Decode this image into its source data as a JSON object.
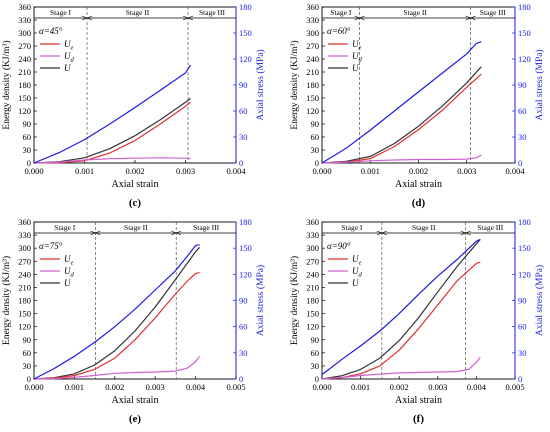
{
  "chart_data": [
    {
      "type": "line",
      "panel_label": "(c)",
      "alpha_text": "α=45°",
      "xlabel": "Axial strain",
      "ylabel": "Energy density (KJ/m³)",
      "y2label": "Axial stress (MPa)",
      "xlim": [
        0,
        0.004
      ],
      "ylim": [
        0,
        360
      ],
      "y2lim": [
        0,
        180
      ],
      "xticks": [
        0.0,
        0.001,
        0.002,
        0.003,
        0.004
      ],
      "xtick_labels": [
        "0.000",
        "0.001",
        "0.002",
        "0.003",
        "0.004"
      ],
      "yticks": [
        0,
        30,
        60,
        90,
        120,
        150,
        180,
        210,
        240,
        270,
        300,
        330,
        360
      ],
      "y2ticks": [
        0,
        30,
        60,
        90,
        120,
        150,
        180
      ],
      "stages": {
        "labels": [
          "Stage I",
          "Stage II",
          "Stage III"
        ],
        "boundaries": [
          0.00105,
          0.00305
        ]
      },
      "legend": [
        {
          "key": "Ue",
          "main": "U",
          "sub": "e",
          "color": "#e03030"
        },
        {
          "key": "Ud",
          "main": "U",
          "sub": "d",
          "color": "#d060d0"
        },
        {
          "key": "U",
          "main": "U",
          "sub": "",
          "color": "#333333"
        }
      ],
      "series": [
        {
          "name": "U",
          "axis": "left",
          "color": "#333333",
          "x": [
            0,
            0.0005,
            0.001,
            0.0015,
            0.002,
            0.0025,
            0.003,
            0.0031
          ],
          "y": [
            0,
            3,
            12,
            33,
            63,
            100,
            140,
            149
          ]
        },
        {
          "name": "Ue",
          "axis": "left",
          "color": "#e03030",
          "x": [
            0,
            0.0005,
            0.001,
            0.0015,
            0.002,
            0.0025,
            0.003,
            0.0031
          ],
          "y": [
            0,
            1,
            5,
            23,
            52,
            90,
            131,
            140
          ]
        },
        {
          "name": "Ud",
          "axis": "left",
          "color": "#d060d0",
          "x": [
            0,
            0.0005,
            0.001,
            0.0015,
            0.002,
            0.0025,
            0.003,
            0.0031
          ],
          "y": [
            0,
            2,
            7,
            10,
            11,
            12,
            11,
            10
          ]
        },
        {
          "name": "Axial stress",
          "axis": "right",
          "color": "#1a1ae6",
          "x": [
            0,
            0.0005,
            0.001,
            0.0015,
            0.002,
            0.0025,
            0.003,
            0.0031
          ],
          "y": [
            0,
            12,
            27,
            45,
            64,
            84,
            104,
            113
          ]
        }
      ]
    },
    {
      "type": "line",
      "panel_label": "(d)",
      "alpha_text": "α=60°",
      "xlabel": "Axial strain",
      "ylabel": "Energy density (KJ/m³)",
      "y2label": "Axial stress (MPa)",
      "xlim": [
        0,
        0.004
      ],
      "ylim": [
        0,
        360
      ],
      "y2lim": [
        0,
        180
      ],
      "xticks": [
        0.0,
        0.001,
        0.002,
        0.003,
        0.004
      ],
      "xtick_labels": [
        "0.000",
        "0.001",
        "0.002",
        "0.003",
        "0.004"
      ],
      "yticks": [
        0,
        30,
        60,
        90,
        120,
        150,
        180,
        210,
        240,
        270,
        300,
        330,
        360
      ],
      "y2ticks": [
        0,
        30,
        60,
        90,
        120,
        150,
        180
      ],
      "stages": {
        "labels": [
          "Stage I",
          "Stage II",
          "Stage III"
        ],
        "boundaries": [
          0.00078,
          0.00308
        ]
      },
      "legend": [
        {
          "key": "Ue",
          "main": "U",
          "sub": "e",
          "color": "#e03030"
        },
        {
          "key": "Ud",
          "main": "U",
          "sub": "d",
          "color": "#d060d0"
        },
        {
          "key": "U",
          "main": "U",
          "sub": "",
          "color": "#333333"
        }
      ],
      "series": [
        {
          "name": "U",
          "axis": "left",
          "color": "#333333",
          "x": [
            0,
            0.0005,
            0.001,
            0.0015,
            0.002,
            0.0025,
            0.003,
            0.0033
          ],
          "y": [
            0,
            4,
            15,
            45,
            85,
            132,
            185,
            222
          ]
        },
        {
          "name": "Ue",
          "axis": "left",
          "color": "#e03030",
          "x": [
            0,
            0.0005,
            0.001,
            0.0015,
            0.002,
            0.0025,
            0.003,
            0.0033
          ],
          "y": [
            0,
            2,
            10,
            38,
            77,
            122,
            175,
            205
          ]
        },
        {
          "name": "Ud",
          "axis": "left",
          "color": "#d060d0",
          "x": [
            0,
            0.0005,
            0.001,
            0.0015,
            0.002,
            0.0025,
            0.003,
            0.0032,
            0.0033
          ],
          "y": [
            0,
            2,
            5,
            7,
            8,
            8,
            9,
            12,
            18
          ]
        },
        {
          "name": "Axial stress",
          "axis": "right",
          "color": "#1a1ae6",
          "x": [
            0,
            0.0005,
            0.001,
            0.0015,
            0.002,
            0.0025,
            0.003,
            0.0032,
            0.0033
          ],
          "y": [
            0,
            17,
            38,
            60,
            82,
            104,
            126,
            138,
            140
          ]
        }
      ]
    },
    {
      "type": "line",
      "panel_label": "(e)",
      "alpha_text": "α=75°",
      "xlabel": "Axial strain",
      "ylabel": "Energy density (KJ/m³)",
      "y2label": "Axial stress (MPa)",
      "xlim": [
        0,
        0.005
      ],
      "ylim": [
        0,
        360
      ],
      "y2lim": [
        0,
        180
      ],
      "xticks": [
        0.0,
        0.001,
        0.002,
        0.003,
        0.004,
        0.005
      ],
      "xtick_labels": [
        "0.000",
        "0.001",
        "0.002",
        "0.003",
        "0.004",
        "0.005"
      ],
      "yticks": [
        0,
        30,
        60,
        90,
        120,
        150,
        180,
        210,
        240,
        270,
        300,
        330,
        360
      ],
      "y2ticks": [
        0,
        30,
        60,
        90,
        120,
        150,
        180
      ],
      "stages": {
        "labels": [
          "Stage I",
          "Stage II",
          "Stage III"
        ],
        "boundaries": [
          0.00152,
          0.00352
        ]
      },
      "legend": [
        {
          "key": "Ue",
          "main": "U",
          "sub": "e",
          "color": "#e03030"
        },
        {
          "key": "Ud",
          "main": "U",
          "sub": "d",
          "color": "#d060d0"
        },
        {
          "key": "U",
          "main": "U",
          "sub": "",
          "color": "#333333"
        }
      ],
      "series": [
        {
          "name": "U",
          "axis": "left",
          "color": "#333333",
          "x": [
            0,
            0.0005,
            0.001,
            0.0015,
            0.002,
            0.0025,
            0.003,
            0.0035,
            0.004,
            0.0041
          ],
          "y": [
            0,
            3,
            12,
            32,
            65,
            110,
            165,
            228,
            292,
            302
          ]
        },
        {
          "name": "Ue",
          "axis": "left",
          "color": "#e03030",
          "x": [
            0,
            0.0005,
            0.001,
            0.0015,
            0.002,
            0.0025,
            0.003,
            0.0035,
            0.0038,
            0.004,
            0.0041
          ],
          "y": [
            0,
            2,
            8,
            22,
            48,
            90,
            140,
            195,
            225,
            242,
            244
          ]
        },
        {
          "name": "Ud",
          "axis": "left",
          "color": "#d060d0",
          "x": [
            0,
            0.0005,
            0.001,
            0.0015,
            0.002,
            0.0025,
            0.003,
            0.0035,
            0.0038,
            0.004,
            0.0041
          ],
          "y": [
            0,
            1,
            4,
            8,
            13,
            15,
            16,
            18,
            25,
            40,
            52
          ]
        },
        {
          "name": "Axial stress",
          "axis": "right",
          "color": "#1a1ae6",
          "x": [
            0,
            0.0005,
            0.001,
            0.0015,
            0.002,
            0.0025,
            0.003,
            0.0035,
            0.0038,
            0.004,
            0.0041
          ],
          "y": [
            0,
            12,
            26,
            42,
            60,
            80,
            102,
            124,
            141,
            153,
            154
          ]
        }
      ]
    },
    {
      "type": "line",
      "panel_label": "(f)",
      "alpha_text": "α=90°",
      "xlabel": "Axial strain",
      "ylabel": "Energy density (KJ/m³)",
      "y2label": "Axial stress (MPa)",
      "xlim": [
        0,
        0.005
      ],
      "ylim": [
        0,
        360
      ],
      "y2lim": [
        0,
        180
      ],
      "xticks": [
        0.0,
        0.001,
        0.002,
        0.003,
        0.004,
        0.005
      ],
      "xtick_labels": [
        "0.000",
        "0.001",
        "0.002",
        "0.003",
        "0.004",
        "0.005"
      ],
      "yticks": [
        0,
        30,
        60,
        90,
        120,
        150,
        180,
        210,
        240,
        270,
        300,
        330,
        360
      ],
      "y2ticks": [
        0,
        30,
        60,
        90,
        120,
        150,
        180
      ],
      "stages": {
        "labels": [
          "Stage I",
          "Stage II",
          "Stage III"
        ],
        "boundaries": [
          0.00155,
          0.00372
        ]
      },
      "legend": [
        {
          "key": "Ue",
          "main": "U",
          "sub": "e",
          "color": "#e03030"
        },
        {
          "key": "Ud",
          "main": "U",
          "sub": "d",
          "color": "#d060d0"
        },
        {
          "key": "U",
          "main": "U",
          "sub": "",
          "color": "#333333"
        }
      ],
      "series": [
        {
          "name": "U",
          "axis": "left",
          "color": "#333333",
          "x": [
            0,
            0.0005,
            0.001,
            0.0015,
            0.002,
            0.0025,
            0.003,
            0.0035,
            0.004,
            0.0041
          ],
          "y": [
            0,
            7,
            22,
            48,
            88,
            140,
            200,
            258,
            310,
            320
          ]
        },
        {
          "name": "Ue",
          "axis": "left",
          "color": "#e03030",
          "x": [
            0,
            0.0005,
            0.001,
            0.0015,
            0.002,
            0.0025,
            0.003,
            0.0035,
            0.004,
            0.0041
          ],
          "y": [
            0,
            3,
            12,
            30,
            66,
            115,
            170,
            225,
            265,
            268
          ]
        },
        {
          "name": "Ud",
          "axis": "left",
          "color": "#d060d0",
          "x": [
            0,
            0.0005,
            0.001,
            0.0015,
            0.002,
            0.0025,
            0.003,
            0.0035,
            0.0038,
            0.004,
            0.0041
          ],
          "y": [
            0,
            3,
            8,
            11,
            14,
            15,
            16,
            17,
            22,
            38,
            50
          ]
        },
        {
          "name": "Axial stress",
          "axis": "right",
          "color": "#1a1ae6",
          "x": [
            0,
            0.0005,
            0.001,
            0.0015,
            0.002,
            0.0025,
            0.003,
            0.0035,
            0.004,
            0.0041
          ],
          "y": [
            5,
            22,
            38,
            55,
            75,
            97,
            118,
            137,
            158,
            160
          ]
        }
      ]
    }
  ]
}
